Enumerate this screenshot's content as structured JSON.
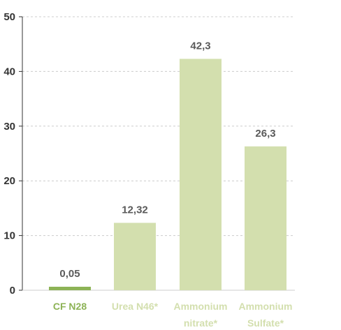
{
  "chart_data": {
    "type": "bar",
    "categories": [
      "CF N28",
      "Urea N46*",
      "Ammonium nitrate*",
      "Ammonium Sulfate*"
    ],
    "category_lines": [
      [
        "CF N28"
      ],
      [
        "Urea N46*"
      ],
      [
        "Ammonium",
        "nitrate*"
      ],
      [
        "Ammonium",
        "Sulfate*"
      ]
    ],
    "values": [
      0.05,
      12.32,
      42.3,
      26.3
    ],
    "data_labels": [
      "0,05",
      "12,32",
      "42,3",
      "26,3"
    ],
    "ylim": [
      0,
      50
    ],
    "yticks": [
      0,
      10,
      20,
      30,
      40,
      50
    ],
    "grid": true,
    "title": "",
    "xlabel": "",
    "ylabel": "",
    "colors": {
      "highlight_bar": "#8db356",
      "bar": "#d3dfae",
      "highlight_label": "#8db356",
      "label": "#d3dfae",
      "grid": "#cccccc",
      "axis": "#333333"
    },
    "highlight_index": 0
  }
}
